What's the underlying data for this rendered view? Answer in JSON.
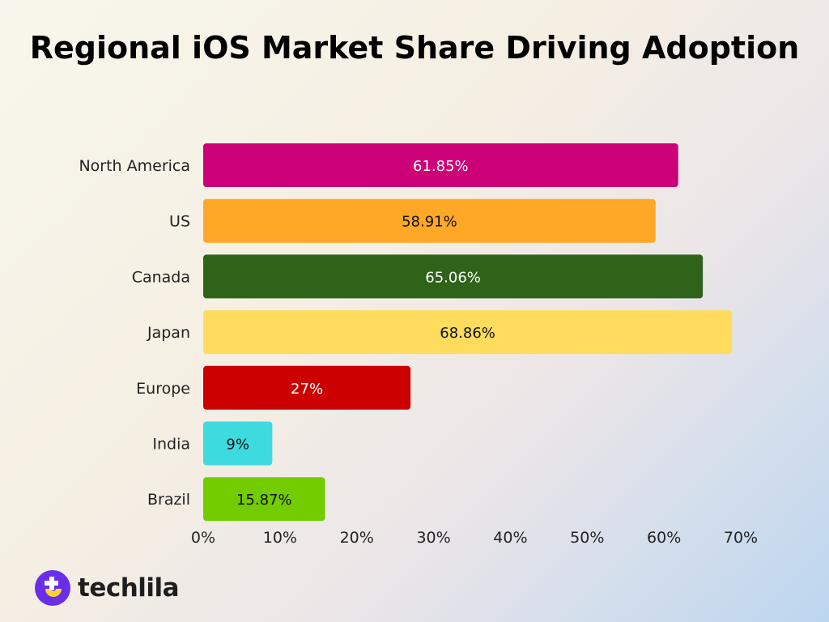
{
  "chart_data": {
    "type": "bar",
    "orientation": "horizontal",
    "title": "Regional iOS Market Share Driving Adoption",
    "categories": [
      "North America",
      "US",
      "Canada",
      "Japan",
      "Europe",
      "India",
      "Brazil"
    ],
    "values": [
      61.85,
      58.91,
      65.06,
      68.86,
      27,
      9,
      15.87
    ],
    "data_labels": [
      "61.85%",
      "58.91%",
      "65.06%",
      "68.86%",
      "27%",
      "9%",
      "15.87%"
    ],
    "colors": [
      "#cc0077",
      "#ffa726",
      "#2e6319",
      "#ffdc5e",
      "#cc0000",
      "#3ddbe0",
      "#72cc00"
    ],
    "label_colors": [
      "#ffffff",
      "#111111",
      "#ffffff",
      "#111111",
      "#ffffff",
      "#111111",
      "#111111"
    ],
    "xlim": [
      0,
      70
    ],
    "xticks": [
      "0%",
      "10%",
      "20%",
      "30%",
      "40%",
      "50%",
      "60%",
      "70%"
    ],
    "grid": false,
    "xlabel": "",
    "ylabel": ""
  },
  "brand": {
    "name": "techlila"
  }
}
